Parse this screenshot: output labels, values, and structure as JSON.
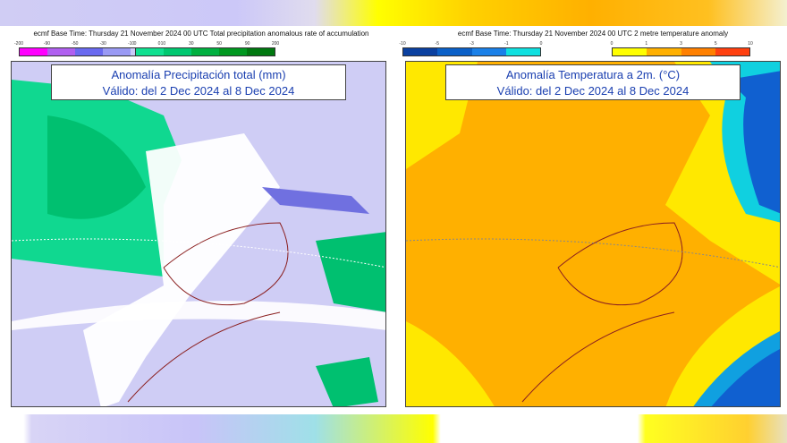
{
  "left": {
    "header": "ecmf  Base Time: Thursday 21 November 2024 00 UTC Total precipitation anomalous rate of accumulation",
    "neg_labels": [
      "-200",
      "-90",
      "-50",
      "-30",
      "-10",
      "0"
    ],
    "neg_colors": [
      "#ff00ff",
      "#b060f0",
      "#6a6af0",
      "#9a9af4",
      "#cacaf8"
    ],
    "pos_labels": [
      "0",
      "10",
      "30",
      "50",
      "90",
      "200"
    ],
    "pos_colors": [
      "#10e090",
      "#00c870",
      "#00b040",
      "#009820",
      "#007810"
    ],
    "title_line1": "Anomalía Precipitación total (mm)",
    "title_line2": "Válido: del 2 Dec 2024 al 8 Dec 2024"
  },
  "right": {
    "header": "ecmf  Base Time: Thursday 21 November 2024 00 UTC 2 metre temperature anomaly",
    "neg_labels": [
      "-10",
      "-5",
      "-3",
      "-1",
      "0"
    ],
    "neg_colors": [
      "#0a40a0",
      "#0a60c8",
      "#1a80e8",
      "#10e0e0"
    ],
    "pos_labels": [
      "0",
      "1",
      "3",
      "5",
      "10"
    ],
    "pos_colors": [
      "#ffff00",
      "#ffb000",
      "#ff8000",
      "#ff4010"
    ],
    "title_line1": "Anomalía Temperatura a 2m. (°C)",
    "title_line2": "Válido: del 2 Dec 2024 al 8 Dec 2024"
  }
}
